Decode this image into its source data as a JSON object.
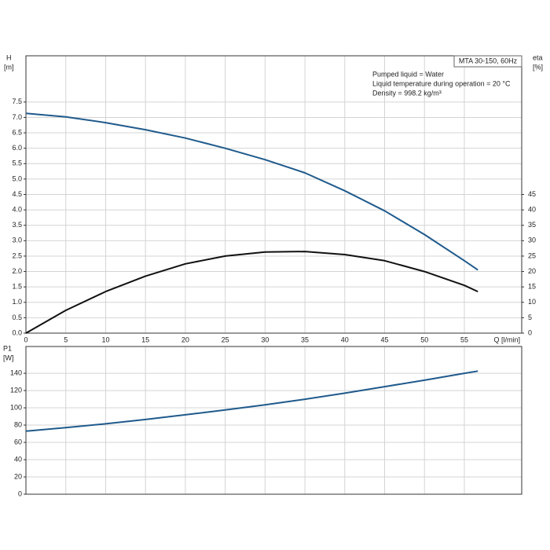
{
  "chart_data": [
    {
      "type": "line",
      "ylabel": "H",
      "yunit": "[m]",
      "y2label": "eta",
      "y2unit": "[%]",
      "xlabel": "Q [l/min]",
      "legend_box": "MTA 30-150, 60Hz",
      "annotations": [
        "Pumped liquid = Water",
        "Liquid temperature during operation = 20 °C",
        "Density = 998.2 kg/m³"
      ],
      "x": [
        0,
        5,
        10,
        15,
        20,
        25,
        30,
        35,
        40,
        45,
        50,
        55,
        56.7
      ],
      "xlim": [
        0,
        62.2
      ],
      "xticks": [
        0,
        5,
        10,
        15,
        20,
        25,
        30,
        35,
        40,
        45,
        50,
        55
      ],
      "ylim": [
        0,
        9
      ],
      "yticks": [
        {
          "value": 0,
          "label": "0.0"
        },
        0.5,
        {
          "value": 1,
          "label": "1.0"
        },
        1.5,
        {
          "value": 2,
          "label": "2.0"
        },
        2.5,
        {
          "value": 3,
          "label": "3.0"
        },
        3.5,
        {
          "value": 4,
          "label": "4.0"
        },
        4.5,
        {
          "value": 5,
          "label": "5.0"
        },
        5.5,
        {
          "value": 6,
          "label": "6.0"
        },
        6.5,
        {
          "value": 7,
          "label": "7.0"
        },
        7.5
      ],
      "y2lim": [
        0,
        90
      ],
      "y2ticks": [
        0,
        5,
        10,
        15,
        20,
        25,
        30,
        35,
        40,
        45
      ],
      "grid": true,
      "series": [
        {
          "name": "H",
          "color": "#1f5a8c",
          "values": [
            7.13,
            7.02,
            6.83,
            6.6,
            6.33,
            6.0,
            5.63,
            5.2,
            4.62,
            3.97,
            3.2,
            2.35,
            2.05
          ]
        },
        {
          "name": "eta",
          "color": "#111111",
          "axis": "y2",
          "values": [
            0,
            7.4,
            13.5,
            18.5,
            22.5,
            25,
            26.3,
            26.5,
            25.5,
            23.5,
            20,
            15.5,
            13.5
          ]
        }
      ]
    },
    {
      "type": "line",
      "ylabel": "P1",
      "yunit": "[W]",
      "x": [
        0,
        5,
        10,
        15,
        20,
        25,
        30,
        35,
        40,
        45,
        50,
        55,
        56.7
      ],
      "xlim": [
        0,
        62.2
      ],
      "ylim": [
        0,
        171
      ],
      "yticks": [
        0,
        20,
        40,
        60,
        80,
        100,
        120,
        140
      ],
      "grid": true,
      "series": [
        {
          "name": "P1",
          "color": "#1f5a8c",
          "values": [
            73,
            77,
            81.5,
            86.5,
            92,
            97.5,
            103.5,
            110,
            117,
            124.5,
            132,
            140,
            142.5
          ]
        }
      ]
    }
  ]
}
